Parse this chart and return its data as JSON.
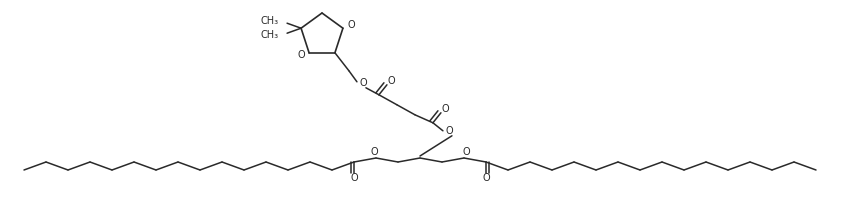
{
  "bg_color": "#ffffff",
  "line_color": "#2a2a2a",
  "line_width": 1.1,
  "figsize": [
    8.51,
    2.23
  ],
  "dpi": 100,
  "xlim": [
    0,
    851
  ],
  "ylim": [
    0,
    223
  ]
}
